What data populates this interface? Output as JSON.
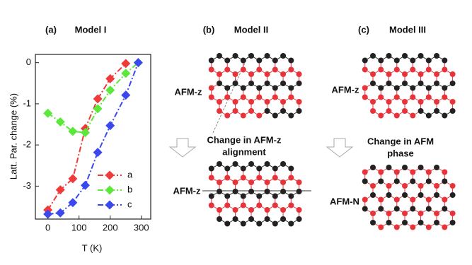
{
  "chart_data": {
    "type": "line",
    "panel_label": "(a)",
    "title": "Model I",
    "x_label": "T (K)",
    "y_label": "Latt. Par. change (%)",
    "x": [
      0,
      40,
      80,
      120,
      160,
      200,
      250,
      290
    ],
    "series": [
      {
        "name": "a",
        "color": "#f03a3a",
        "values": [
          -3.58,
          -3.09,
          -2.82,
          -1.6,
          -0.88,
          -0.39,
          -0.02,
          null
        ]
      },
      {
        "name": "b",
        "color": "#5ce83a",
        "values": [
          -1.23,
          -1.44,
          -1.67,
          -1.7,
          -1.12,
          -0.67,
          -0.26,
          0
        ]
      },
      {
        "name": "c",
        "color": "#3a48ee",
        "values": [
          -3.68,
          -3.65,
          -3.4,
          -2.98,
          -2.18,
          -1.53,
          -0.79,
          0
        ]
      }
    ],
    "xlim": [
      -40,
      330
    ],
    "ylim": [
      -3.8,
      0.2
    ],
    "xticks": [
      0,
      100,
      200,
      300
    ],
    "yticks": [
      0,
      -1,
      -2,
      -3
    ],
    "legend": "lower right"
  },
  "panels": [
    {
      "label": "(b)",
      "title": "Model II",
      "top_label": "AFM-z",
      "bottom_label": "AFM-z",
      "change": [
        "Change in AFM-z",
        "alignment"
      ]
    },
    {
      "label": "(c)",
      "title": "Model III",
      "top_label": "AFM-z",
      "bottom_label": "AFM-N",
      "change": [
        "Change in AFM",
        "phase"
      ]
    }
  ]
}
